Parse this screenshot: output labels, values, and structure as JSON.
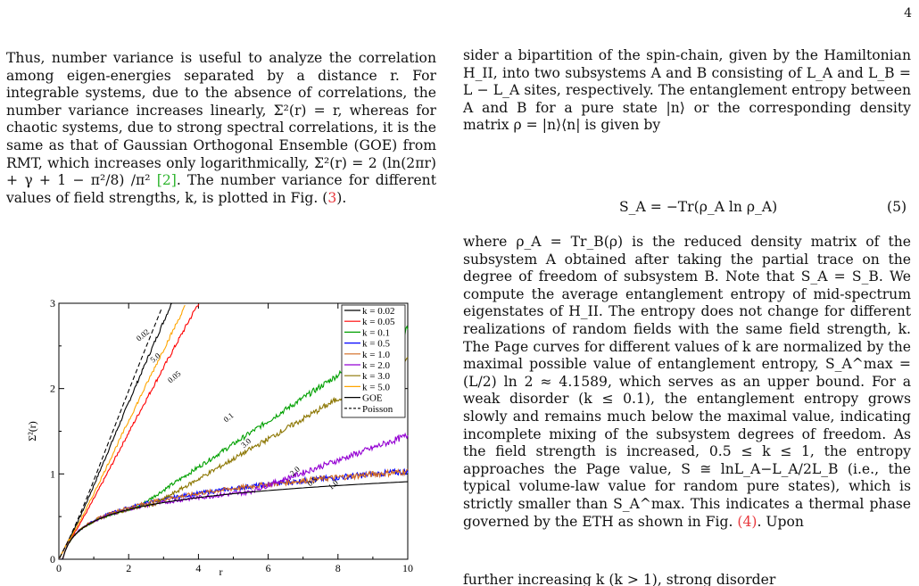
{
  "page_number": "4",
  "left_text": {
    "paragraph": "Thus, number variance is useful to analyze the correlation among eigen-energies separated by a distance r. For integrable systems, due to the absence of correlations, the number variance increases linearly, Σ²(r) = r, whereas for chaotic systems, due to strong spectral correlations, it is the same as that of Gaussian Orthogonal Ensemble (GOE) from RMT, which increases only logarithmically, Σ²(r) = 2 (ln(2πr) + γ + 1 − π²/8) /π² ",
    "cite": "[2]",
    "paragraph_tail": ". The number variance for different values of field strengths, k, is plotted in Fig. ",
    "fig_ref_open": "(",
    "fig_ref": "3",
    "fig_ref_close": ")."
  },
  "right_text": {
    "para1": "sider a bipartition of the spin-chain, given by the Hamiltonian H_II, into two subsystems A and B consisting of L_A and L_B = L − L_A sites, respectively. The entanglement entropy between A and B for a pure state |n⟩ or the corresponding density matrix ρ = |n⟩⟨n| is given by",
    "equation": "S_A = −Tr(ρ_A ln ρ_A)",
    "equation_number": "(5)",
    "para2": "where ρ_A = Tr_B(ρ) is the reduced density matrix of the subsystem A obtained after taking the partial trace on the degree of freedom of subsystem B. Note that S_A = S_B. We compute the average entanglement entropy of mid-spectrum eigenstates of H_II. The entropy does not change for different realizations of random fields with the same field strength, k. The Page curves for different values of k are normalized by the maximal possible value of entanglement entropy, S_A^max = (L/2) ln 2 ≈ 4.1589, which serves as an upper bound. For a weak disorder (k ≤ 0.1), the entanglement entropy grows slowly and remains much below the maximal value, indicating incomplete mixing of the subsystem degrees of freedom. As the field strength is increased, 0.5 ≤ k ≤ 1, the entropy approaches the Page value, S ≅ lnL_A−L_A/2L_B (i.e., the typical volume-law value for random pure states), which is strictly smaller than S_A^max. This indicates a thermal phase governed by the ETH as shown in Fig. ",
    "fig_ref": "(4)",
    "para2_tail": ". Upon",
    "cut_line": "further increasing k (k > 1), strong disorder"
  },
  "chart_data": {
    "type": "line",
    "xlabel": "r",
    "ylabel": "Σ²(r)",
    "xlim": [
      0,
      10
    ],
    "ylim": [
      0,
      3
    ],
    "xticks": [
      "0",
      "2",
      "4",
      "6",
      "8",
      "10"
    ],
    "yticks": [
      "0",
      "1",
      "2",
      "3"
    ],
    "legend_position": "top-right",
    "series": [
      {
        "name": "k = 0.02",
        "color": "#000000",
        "style": "solid",
        "slope": 0.93,
        "curve_label": "0.02"
      },
      {
        "name": "k = 0.05",
        "color": "#ff0000",
        "style": "solid",
        "slope": 0.75,
        "curve_label": "0.05"
      },
      {
        "name": "k = 0.1",
        "color": "#00a000",
        "style": "solid",
        "slope": 0.27,
        "curve_label": "0.1"
      },
      {
        "name": "k = 0.5",
        "color": "#0000ff",
        "style": "solid",
        "type": "log",
        "curve_label": "0.5"
      },
      {
        "name": "k = 1.0",
        "color": "#d2691e",
        "style": "solid",
        "type": "log",
        "curve_label": "1.0"
      },
      {
        "name": "k = 2.0",
        "color": "#9400d3",
        "style": "solid",
        "slope": 0.145,
        "curve_label": "2.0"
      },
      {
        "name": "k = 3.0",
        "color": "#8b7500",
        "style": "solid",
        "slope": 0.235,
        "curve_label": "3.0"
      },
      {
        "name": "k = 5.0",
        "color": "#ffa500",
        "style": "solid",
        "slope": 0.82,
        "curve_label": "5.0"
      },
      {
        "name": "GOE",
        "color": "#000000",
        "style": "solid",
        "type": "goe"
      },
      {
        "name": "Poisson",
        "color": "#000000",
        "style": "dashed",
        "slope": 1.0
      }
    ]
  }
}
